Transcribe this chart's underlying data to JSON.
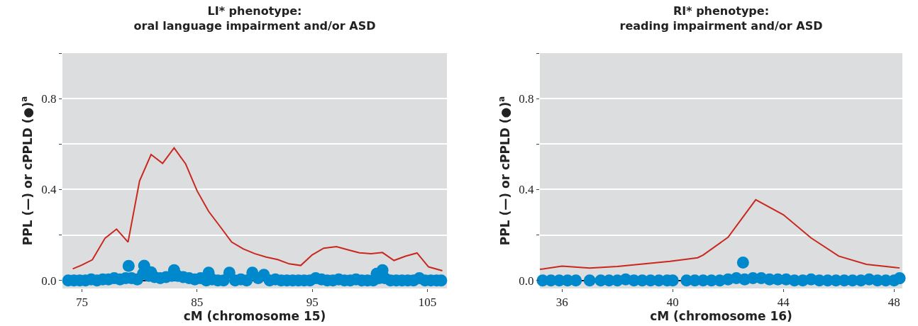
{
  "chart_data": [
    {
      "type": "line",
      "title": "LI* phenotype:\noral language impairment and/or ASD",
      "xlabel": "cM (chromosome 15)",
      "ylabel": "PPL (—) or cPPLD (●)$^{a}$",
      "xlim": [
        73.3,
        106.7
      ],
      "xticks": [
        75,
        85,
        95,
        105
      ],
      "ylim": [
        -0.035,
        1.0
      ],
      "yticks": [
        {
          "value": 0,
          "label": "0.0"
        },
        {
          "value": 0.2,
          "label": null
        },
        {
          "value": 0.4,
          "label": "0.4"
        },
        {
          "value": 0.6,
          "label": null
        },
        {
          "value": 0.8,
          "label": "0.8"
        },
        {
          "value": 1.0,
          "label": null
        }
      ],
      "grid": "y",
      "series": [
        {
          "color": "#c8281e",
          "marker": "none",
          "line_style": "solid",
          "x": [
            74.2,
            75,
            75.9,
            77,
            78,
            79,
            80,
            81,
            82,
            83,
            84,
            85,
            86,
            87,
            88,
            89,
            90,
            91,
            92,
            93,
            94,
            95,
            96,
            97.1,
            98.1,
            99.1,
            100.1,
            101.1,
            102.1,
            103.1,
            104.1,
            105.1,
            106.3
          ],
          "values": [
            0.051,
            0.068,
            0.091,
            0.186,
            0.226,
            0.169,
            0.438,
            0.554,
            0.515,
            0.583,
            0.513,
            0.394,
            0.304,
            0.237,
            0.169,
            0.139,
            0.118,
            0.103,
            0.092,
            0.073,
            0.066,
            0.113,
            0.142,
            0.149,
            0.135,
            0.122,
            0.118,
            0.123,
            0.088,
            0.107,
            0.121,
            0.06,
            0.043
          ]
        },
        {
          "type": "scatter",
          "color": "#0088cc",
          "marker": "circle",
          "x": [
            73.8,
            74.3,
            74.8,
            75.3,
            75.8,
            76.3,
            76.8,
            77.3,
            77.8,
            78.3,
            78.8,
            79.05,
            79.3,
            79.8,
            80.3,
            80.4,
            80.8,
            81.0,
            81.3,
            81.8,
            82.3,
            82.8,
            83.0,
            83.3,
            83.8,
            84.3,
            84.8,
            85.3,
            85.8,
            86.0,
            86.3,
            86.8,
            87.3,
            87.8,
            88.3,
            88.8,
            89.3,
            89.8,
            90.3,
            90.8,
            91.3,
            91.8,
            92.3,
            92.8,
            93.3,
            93.8,
            94.3,
            94.8,
            95.3,
            95.8,
            96.3,
            96.8,
            97.3,
            97.8,
            98.3,
            98.8,
            99.3,
            99.8,
            100.3,
            100.6,
            100.8,
            101.1,
            101.3,
            101.8,
            102.3,
            102.8,
            103.3,
            103.8,
            104.3,
            104.8,
            105.3,
            105.8,
            106.2
          ],
          "values": [
            0,
            0,
            0,
            0,
            0.005,
            0,
            0.005,
            0.005,
            0.01,
            0.005,
            0.01,
            0.064,
            0.01,
            0.005,
            0.03,
            0.065,
            0.02,
            0.036,
            0.015,
            0.01,
            0.015,
            0.02,
            0.045,
            0.02,
            0.015,
            0.01,
            0.005,
            0.01,
            0,
            0.034,
            0.005,
            0,
            0,
            0.034,
            0,
            0.005,
            0,
            0.034,
            0.01,
            0.025,
            0,
            0.005,
            0,
            0,
            0,
            0,
            0,
            0,
            0.01,
            0.005,
            0,
            0,
            0.005,
            0,
            0,
            0.005,
            0,
            0,
            0,
            0.03,
            0.01,
            0.045,
            0.01,
            0,
            0,
            0,
            0,
            0,
            0.01,
            0,
            0,
            0,
            0
          ]
        }
      ]
    },
    {
      "type": "line",
      "title": "RI* phenotype:\nreading impairment and/or ASD",
      "xlabel": "cM (chromosome 16)",
      "ylabel": "PPL (—) or cPPLD (●)$^{a}$",
      "xlim": [
        35.2,
        48.3
      ],
      "xticks": [
        36,
        40,
        44,
        48
      ],
      "ylim": [
        -0.035,
        1.0
      ],
      "yticks": [
        {
          "value": 0,
          "label": "0.0"
        },
        {
          "value": 0.2,
          "label": null
        },
        {
          "value": 0.4,
          "label": "0.4"
        },
        {
          "value": 0.6,
          "label": null
        },
        {
          "value": 0.8,
          "label": "0.8"
        },
        {
          "value": 1.0,
          "label": null
        }
      ],
      "grid": "y",
      "series": [
        {
          "color": "#c8281e",
          "marker": "none",
          "line_style": "solid",
          "x": [
            35.2,
            36,
            37,
            38,
            39.9,
            40.9,
            41.1,
            42,
            43,
            44,
            45,
            46,
            47,
            48,
            48.2
          ],
          "values": [
            0.049,
            0.063,
            0.055,
            0.062,
            0.084,
            0.1,
            0.112,
            0.19,
            0.355,
            0.289,
            0.187,
            0.107,
            0.071,
            0.058,
            0.055
          ]
        },
        {
          "type": "scatter",
          "color": "#0088cc",
          "marker": "circle",
          "x": [
            35.3,
            35.6,
            35.9,
            36.2,
            36.5,
            37.0,
            37.4,
            37.7,
            38.0,
            38.3,
            38.6,
            38.9,
            39.2,
            39.5,
            39.8,
            40.0,
            40.5,
            40.8,
            41.1,
            41.4,
            41.7,
            42.0,
            42.3,
            42.54,
            42.6,
            42.9,
            43.2,
            43.5,
            43.8,
            44.1,
            44.4,
            44.7,
            45.0,
            45.3,
            45.6,
            45.9,
            46.2,
            46.5,
            46.8,
            47.1,
            47.4,
            47.7,
            48.0,
            48.2
          ],
          "values": [
            0,
            0,
            0,
            0,
            0,
            0,
            0,
            0,
            0,
            0.005,
            0,
            0,
            0,
            0,
            0,
            0,
            0,
            0,
            0,
            0,
            0,
            0.005,
            0.01,
            0.079,
            0.005,
            0.01,
            0.01,
            0.005,
            0.005,
            0.005,
            0,
            0,
            0.005,
            0,
            0,
            0,
            0,
            0,
            0,
            0.005,
            0,
            0,
            0,
            0.01
          ]
        }
      ]
    }
  ]
}
